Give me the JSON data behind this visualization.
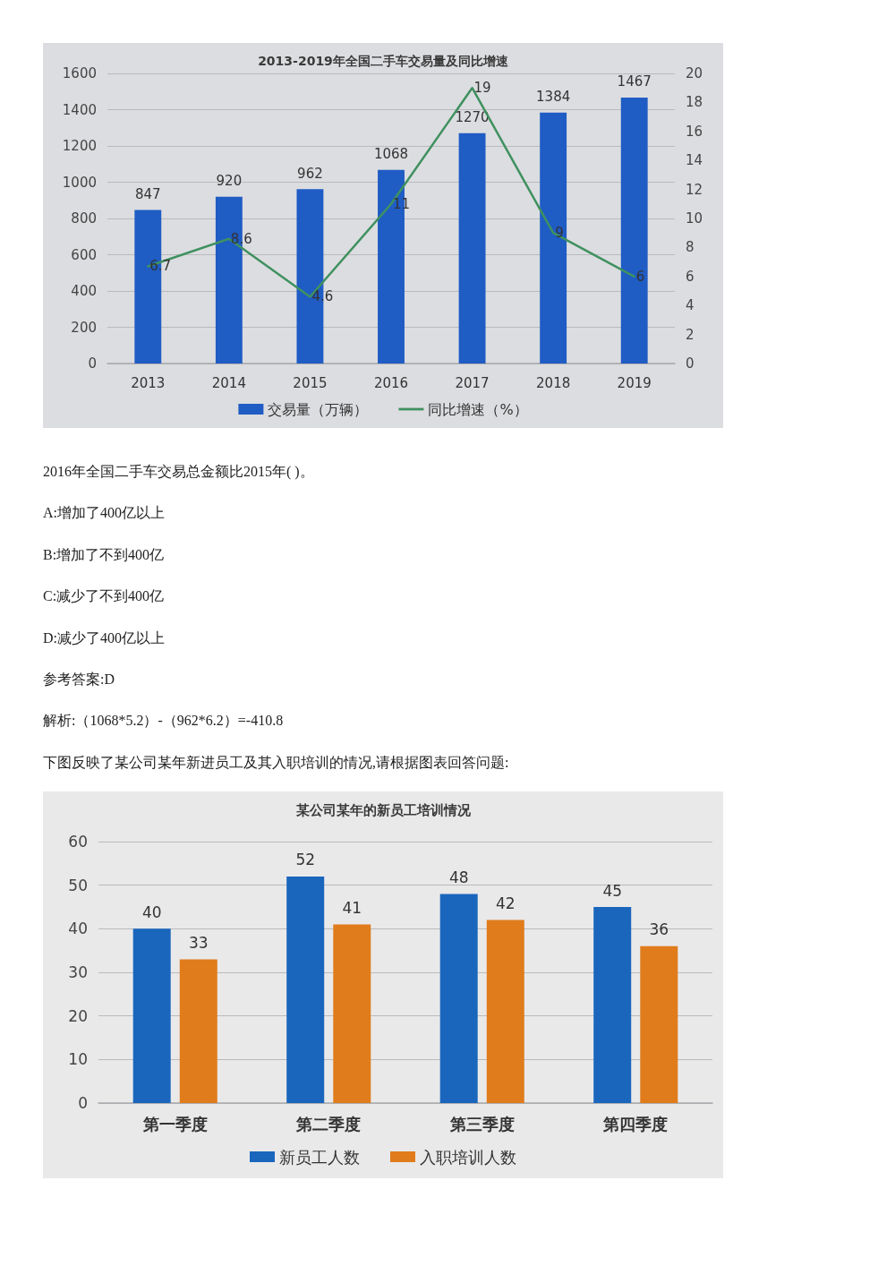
{
  "chart_data": [
    {
      "type": "bar",
      "title": "2013-2019年全国二手车交易量及同比增速",
      "categories": [
        "2013",
        "2014",
        "2015",
        "2016",
        "2017",
        "2018",
        "2019"
      ],
      "series": [
        {
          "name": "交易量（万辆）",
          "color": "#1f5cc4",
          "values": [
            847,
            920,
            962,
            1068,
            1270,
            1384,
            1467
          ]
        },
        {
          "name": "同比增速（%）",
          "type": "line",
          "axis": "y2",
          "color": "#3f9160",
          "values": [
            6.7,
            8.6,
            4.6,
            11,
            19,
            9,
            6
          ]
        }
      ],
      "ylim": [
        0,
        1600
      ],
      "yticks": [
        0,
        200,
        400,
        600,
        800,
        1000,
        1200,
        1400,
        1600
      ],
      "y2lim": [
        0,
        20
      ],
      "y2ticks": [
        0,
        2,
        4,
        6,
        8,
        10,
        12,
        14,
        16,
        18,
        20
      ],
      "data_labels": true,
      "grid": "y",
      "legend": "bottom",
      "marker": "none",
      "annotations": [
        "2016年全国二手车交易总金额比2015年( )。",
        "A:增加了400亿以上",
        "B:增加了不到400亿",
        "C:减少了不到400亿",
        "D:减少了400亿以上",
        "参考答案:D",
        "解析:（1068*5.2）-（962*6.2）=-410.8"
      ]
    },
    {
      "type": "bar",
      "title": "某公司某年的新员工培训情况",
      "categories": [
        "第一季度",
        "第二季度",
        "第三季度",
        "第四季度"
      ],
      "series": [
        {
          "name": "新员工人数",
          "color": "#1a66bd",
          "values": [
            40,
            52,
            48,
            45
          ]
        },
        {
          "name": "入职培训人数",
          "color": "#e07c1c",
          "values": [
            33,
            41,
            42,
            36
          ]
        }
      ],
      "ylim": [
        0,
        60
      ],
      "yticks": [
        0,
        10,
        20,
        30,
        40,
        50,
        60
      ],
      "data_labels": true,
      "grid": "y",
      "legend": "bottom",
      "annotations": [
        "下图反映了某公司某年新进员工及其入职培训的情况,请根据图表回答问题:"
      ]
    }
  ]
}
